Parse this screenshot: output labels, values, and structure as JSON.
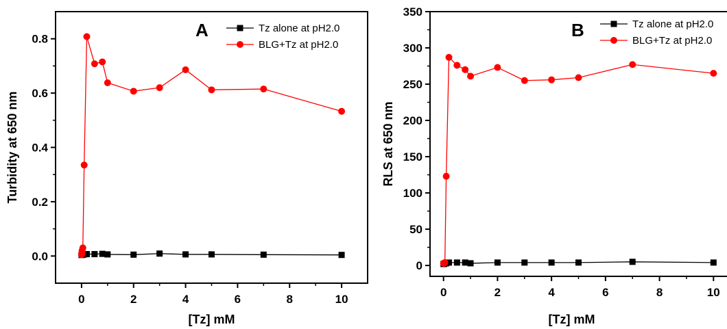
{
  "chart_data": [
    {
      "type": "line",
      "panel_label": "A",
      "xlabel": "[Tz] mM",
      "ylabel": "Turbidity at 650 nm",
      "xlim": [
        -1,
        11
      ],
      "ylim": [
        -0.1,
        0.9
      ],
      "xticks": [
        0,
        2,
        4,
        6,
        8,
        10
      ],
      "yticks": [
        0.0,
        0.2,
        0.4,
        0.6,
        0.8
      ],
      "ytick_labels": [
        "0.0",
        "0.2",
        "0.4",
        "0.6",
        "0.8"
      ],
      "grid": false,
      "legend_position": "top-right",
      "series": [
        {
          "name": "Tz alone at pH2.0",
          "color": "#000000",
          "marker": "square",
          "x": [
            0,
            0.01,
            0.02,
            0.05,
            0.1,
            0.2,
            0.5,
            0.8,
            1,
            2,
            3,
            4,
            5,
            7,
            10
          ],
          "y": [
            0.004,
            0.004,
            0.005,
            0.005,
            0.006,
            0.007,
            0.007,
            0.008,
            0.006,
            0.005,
            0.009,
            0.006,
            0.006,
            0.005,
            0.004
          ]
        },
        {
          "name": "BLG+Tz at pH2.0",
          "color": "#ff0000",
          "marker": "circle",
          "x": [
            0,
            0.01,
            0.02,
            0.05,
            0.1,
            0.2,
            0.5,
            0.8,
            1,
            2,
            3,
            4,
            5,
            7,
            10
          ],
          "y": [
            0.005,
            0.01,
            0.02,
            0.03,
            0.335,
            0.808,
            0.708,
            0.715,
            0.638,
            0.607,
            0.62,
            0.686,
            0.612,
            0.615,
            0.533
          ]
        }
      ]
    },
    {
      "type": "line",
      "panel_label": "B",
      "xlabel": "[Tz] mM",
      "ylabel": "RLS at 650 nm",
      "xlim": [
        -0.5,
        10.5
      ],
      "ylim": [
        -15,
        350
      ],
      "xticks": [
        0,
        2,
        4,
        6,
        8,
        10
      ],
      "yticks": [
        0,
        50,
        100,
        150,
        200,
        250,
        300,
        350
      ],
      "ytick_labels": [
        "0",
        "50",
        "100",
        "150",
        "200",
        "250",
        "300",
        "350"
      ],
      "grid": false,
      "legend_position": "top-right",
      "series": [
        {
          "name": "Tz alone at pH2.0",
          "color": "#000000",
          "marker": "square",
          "x": [
            0,
            0.02,
            0.05,
            0.1,
            0.2,
            0.5,
            0.8,
            1,
            2,
            3,
            4,
            5,
            7,
            10
          ],
          "y": [
            2,
            2,
            3,
            3,
            4,
            4,
            4,
            3,
            4,
            4,
            4,
            4,
            5,
            4
          ]
        },
        {
          "name": "BLG+Tz at pH2.0",
          "color": "#ff0000",
          "marker": "circle",
          "x": [
            0,
            0.02,
            0.05,
            0.1,
            0.2,
            0.5,
            0.8,
            1,
            2,
            3,
            4,
            5,
            7,
            10
          ],
          "y": [
            3,
            3,
            4,
            123,
            287,
            276,
            270,
            261,
            273,
            255,
            256,
            259,
            277,
            265
          ]
        }
      ]
    }
  ]
}
